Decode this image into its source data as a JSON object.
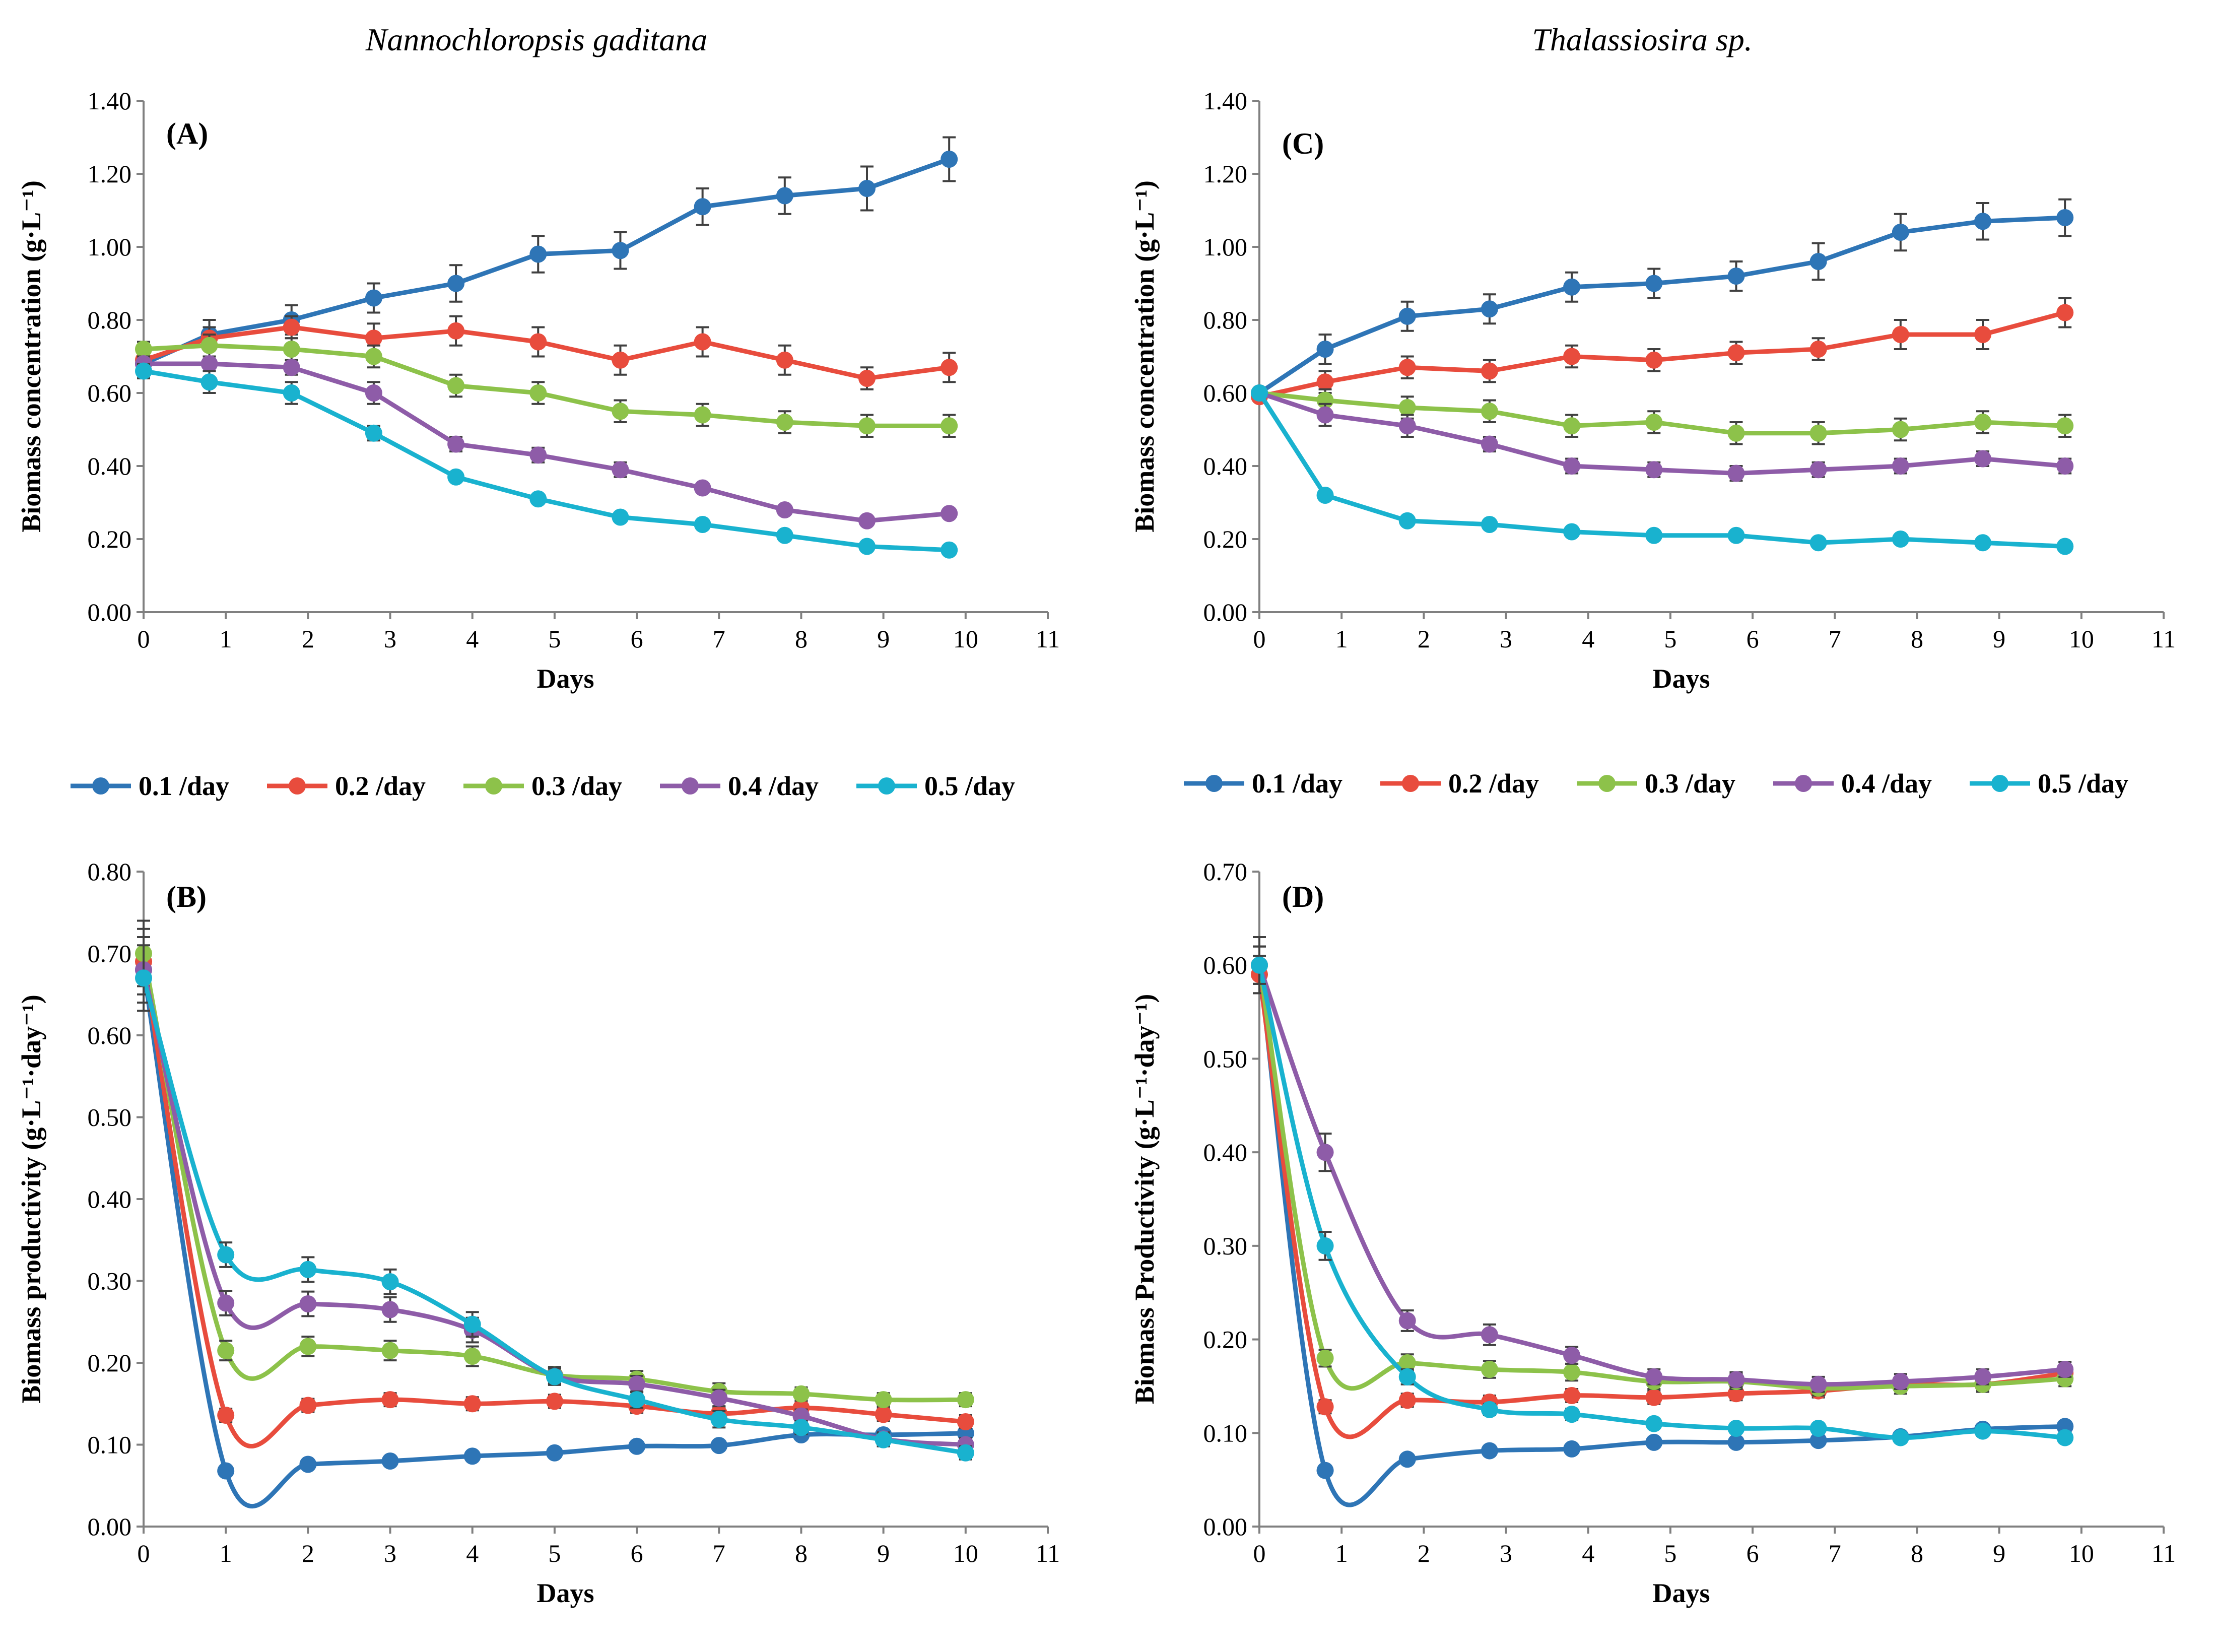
{
  "colors": {
    "s1": "#2e75b6",
    "s2": "#e84c3d",
    "s3": "#8dc24a",
    "s4": "#8e5ca8",
    "s5": "#19b2cf"
  },
  "column_titles": [
    "Nannochloropsis gaditana",
    "Thalassiosira sp."
  ],
  "legends": [
    [
      "0.1 /day",
      "0.2 /day",
      "0.3 /day",
      "0.4 /day",
      "0.5 /day"
    ],
    [
      "0.1 /day",
      "0.2 /day",
      "0.3 /day",
      "0.4 /day",
      "0.5 /day"
    ]
  ],
  "chart_data": [
    {
      "id": "A",
      "type": "line",
      "label": "(A)",
      "xlabel": "Days",
      "ylabel": "Biomass concentration (g·L⁻¹)",
      "xlim": [
        0,
        11
      ],
      "ylim": [
        0,
        1.4
      ],
      "xticks": [
        0,
        1,
        2,
        3,
        4,
        5,
        6,
        7,
        8,
        9,
        10,
        11
      ],
      "xtick_labels": [
        "0",
        "1",
        "2",
        "3",
        "4",
        "5",
        "6",
        "7",
        "8",
        "9",
        "10",
        "11"
      ],
      "yticks": [
        0,
        0.2,
        0.4,
        0.6,
        0.8,
        1.0,
        1.2,
        1.4
      ],
      "ytick_labels": [
        "0.00",
        "0.20",
        "0.40",
        "0.60",
        "0.80",
        "1.00",
        "1.20",
        "1.40"
      ],
      "smooth": false,
      "series": [
        {
          "name": "0.1 /day",
          "x": [
            0,
            0.8,
            1.8,
            2.8,
            3.8,
            4.8,
            5.8,
            6.8,
            7.8,
            8.8,
            9.8
          ],
          "y": [
            0.68,
            0.76,
            0.8,
            0.86,
            0.9,
            0.98,
            0.99,
            1.11,
            1.14,
            1.16,
            1.24
          ],
          "err": [
            0.02,
            0.04,
            0.04,
            0.04,
            0.05,
            0.05,
            0.05,
            0.05,
            0.05,
            0.06,
            0.06
          ]
        },
        {
          "name": "0.2 /day",
          "x": [
            0,
            0.8,
            1.8,
            2.8,
            3.8,
            4.8,
            5.8,
            6.8,
            7.8,
            8.8,
            9.8
          ],
          "y": [
            0.69,
            0.75,
            0.78,
            0.75,
            0.77,
            0.74,
            0.69,
            0.74,
            0.69,
            0.64,
            0.67
          ],
          "err": [
            0.02,
            0.03,
            0.03,
            0.04,
            0.04,
            0.04,
            0.04,
            0.04,
            0.04,
            0.03,
            0.04
          ]
        },
        {
          "name": "0.3 /day",
          "x": [
            0,
            0.8,
            1.8,
            2.8,
            3.8,
            4.8,
            5.8,
            6.8,
            7.8,
            8.8,
            9.8
          ],
          "y": [
            0.72,
            0.73,
            0.72,
            0.7,
            0.62,
            0.6,
            0.55,
            0.54,
            0.52,
            0.51,
            0.51
          ],
          "err": [
            0.02,
            0.03,
            0.03,
            0.03,
            0.03,
            0.03,
            0.03,
            0.03,
            0.03,
            0.03,
            0.03
          ]
        },
        {
          "name": "0.4 /day",
          "x": [
            0,
            0.8,
            1.8,
            2.8,
            3.8,
            4.8,
            5.8,
            6.8,
            7.8,
            8.8,
            9.8
          ],
          "y": [
            0.68,
            0.68,
            0.67,
            0.6,
            0.46,
            0.43,
            0.39,
            0.34,
            0.28,
            0.25,
            0.27
          ],
          "err": [
            0.02,
            0.02,
            0.02,
            0.03,
            0.02,
            0.02,
            0.02,
            0.01,
            0.01,
            0.01,
            0.01
          ]
        },
        {
          "name": "0.5 /day",
          "x": [
            0,
            0.8,
            1.8,
            2.8,
            3.8,
            4.8,
            5.8,
            6.8,
            7.8,
            8.8,
            9.8
          ],
          "y": [
            0.66,
            0.63,
            0.6,
            0.49,
            0.37,
            0.31,
            0.26,
            0.24,
            0.21,
            0.18,
            0.17
          ],
          "err": [
            0.02,
            0.03,
            0.03,
            0.02,
            0.01,
            0.01,
            0.01,
            0.01,
            0.01,
            0.01,
            0.01
          ]
        }
      ]
    },
    {
      "id": "B",
      "type": "line",
      "label": "(B)",
      "xlabel": "Days",
      "ylabel": "Biomass productivity (g·L⁻¹·day⁻¹)",
      "xlim": [
        0,
        11
      ],
      "ylim": [
        0,
        0.8
      ],
      "xticks": [
        0,
        1,
        2,
        3,
        4,
        5,
        6,
        7,
        8,
        9,
        10,
        11
      ],
      "xtick_labels": [
        "0",
        "1",
        "2",
        "3",
        "4",
        "5",
        "6",
        "7",
        "8",
        "9",
        "10",
        "11"
      ],
      "yticks": [
        0,
        0.1,
        0.2,
        0.3,
        0.4,
        0.5,
        0.6,
        0.7,
        0.8
      ],
      "ytick_labels": [
        "0.00",
        "0.10",
        "0.20",
        "0.30",
        "0.40",
        "0.50",
        "0.60",
        "0.70",
        "0.80"
      ],
      "smooth": true,
      "series": [
        {
          "name": "0.1 /day",
          "x": [
            0,
            1,
            2,
            3,
            4,
            5,
            6,
            7,
            8,
            9,
            10
          ],
          "y": [
            0.68,
            0.068,
            0.076,
            0.08,
            0.086,
            0.09,
            0.098,
            0.099,
            0.112,
            0.112,
            0.114
          ],
          "err": [
            0.04,
            0,
            0,
            0,
            0,
            0,
            0,
            0,
            0,
            0,
            0
          ]
        },
        {
          "name": "0.2 /day",
          "x": [
            0,
            1,
            2,
            3,
            4,
            5,
            6,
            7,
            8,
            9,
            10
          ],
          "y": [
            0.69,
            0.136,
            0.148,
            0.155,
            0.15,
            0.153,
            0.147,
            0.138,
            0.145,
            0.137,
            0.128
          ],
          "err": [
            0.04,
            0.008,
            0.008,
            0.008,
            0.008,
            0.008,
            0.008,
            0.008,
            0.008,
            0.008,
            0.008
          ]
        },
        {
          "name": "0.3 /day",
          "x": [
            0,
            1,
            2,
            3,
            4,
            5,
            6,
            7,
            8,
            9,
            10
          ],
          "y": [
            0.7,
            0.215,
            0.22,
            0.215,
            0.208,
            0.185,
            0.18,
            0.165,
            0.162,
            0.155,
            0.155
          ],
          "err": [
            0.04,
            0.012,
            0.012,
            0.012,
            0.012,
            0.01,
            0.01,
            0.01,
            0.008,
            0.008,
            0.008
          ]
        },
        {
          "name": "0.4 /day",
          "x": [
            0,
            1,
            2,
            3,
            4,
            5,
            6,
            7,
            8,
            9,
            10
          ],
          "y": [
            0.68,
            0.273,
            0.272,
            0.265,
            0.24,
            0.184,
            0.174,
            0.157,
            0.135,
            0.107,
            0.1
          ],
          "err": [
            0.04,
            0.015,
            0.015,
            0.015,
            0.015,
            0.01,
            0.01,
            0.01,
            0.008,
            0.008,
            0.008
          ]
        },
        {
          "name": "0.5 /day",
          "x": [
            0,
            1,
            2,
            3,
            4,
            5,
            6,
            7,
            8,
            9,
            10
          ],
          "y": [
            0.67,
            0.332,
            0.314,
            0.299,
            0.247,
            0.183,
            0.155,
            0.131,
            0.121,
            0.106,
            0.09
          ],
          "err": [
            0.04,
            0.015,
            0.015,
            0.015,
            0.015,
            0.01,
            0.01,
            0.01,
            0.008,
            0.008,
            0.008
          ]
        }
      ]
    },
    {
      "id": "C",
      "type": "line",
      "label": "(C)",
      "xlabel": "Days",
      "ylabel": "Biomass concentration (g·L⁻¹)",
      "xlim": [
        0,
        11
      ],
      "ylim": [
        0,
        1.4
      ],
      "xticks": [
        0,
        1,
        2,
        3,
        4,
        5,
        6,
        7,
        8,
        9,
        10,
        11
      ],
      "xtick_labels": [
        "0",
        "1",
        "2",
        "3",
        "4",
        "5",
        "6",
        "7",
        "8",
        "9",
        "10",
        "11"
      ],
      "yticks": [
        0,
        0.2,
        0.4,
        0.6,
        0.8,
        1.0,
        1.2,
        1.4
      ],
      "ytick_labels": [
        "0.00",
        "0.20",
        "0.40",
        "0.60",
        "0.80",
        "1.00",
        "1.20",
        "1.40"
      ],
      "smooth": false,
      "series": [
        {
          "name": "0.1 /day",
          "x": [
            0,
            0.8,
            1.8,
            2.8,
            3.8,
            4.8,
            5.8,
            6.8,
            7.8,
            8.8,
            9.8
          ],
          "y": [
            0.6,
            0.72,
            0.81,
            0.83,
            0.89,
            0.9,
            0.92,
            0.96,
            1.04,
            1.07,
            1.08
          ],
          "err": [
            0.01,
            0.04,
            0.04,
            0.04,
            0.04,
            0.04,
            0.04,
            0.05,
            0.05,
            0.05,
            0.05
          ]
        },
        {
          "name": "0.2 /day",
          "x": [
            0,
            0.8,
            1.8,
            2.8,
            3.8,
            4.8,
            5.8,
            6.8,
            7.8,
            8.8,
            9.8
          ],
          "y": [
            0.59,
            0.63,
            0.67,
            0.66,
            0.7,
            0.69,
            0.71,
            0.72,
            0.76,
            0.76,
            0.82
          ],
          "err": [
            0.01,
            0.03,
            0.03,
            0.03,
            0.03,
            0.03,
            0.03,
            0.03,
            0.04,
            0.04,
            0.04
          ]
        },
        {
          "name": "0.3 /day",
          "x": [
            0,
            0.8,
            1.8,
            2.8,
            3.8,
            4.8,
            5.8,
            6.8,
            7.8,
            8.8,
            9.8
          ],
          "y": [
            0.6,
            0.58,
            0.56,
            0.55,
            0.51,
            0.52,
            0.49,
            0.49,
            0.5,
            0.52,
            0.51
          ],
          "err": [
            0.01,
            0.03,
            0.03,
            0.03,
            0.03,
            0.03,
            0.03,
            0.03,
            0.03,
            0.03,
            0.03
          ]
        },
        {
          "name": "0.4 /day",
          "x": [
            0,
            0.8,
            1.8,
            2.8,
            3.8,
            4.8,
            5.8,
            6.8,
            7.8,
            8.8,
            9.8
          ],
          "y": [
            0.6,
            0.54,
            0.51,
            0.46,
            0.4,
            0.39,
            0.38,
            0.39,
            0.4,
            0.42,
            0.4
          ],
          "err": [
            0.01,
            0.03,
            0.03,
            0.02,
            0.02,
            0.02,
            0.02,
            0.02,
            0.02,
            0.02,
            0.02
          ]
        },
        {
          "name": "0.5 /day",
          "x": [
            0,
            0.8,
            1.8,
            2.8,
            3.8,
            4.8,
            5.8,
            6.8,
            7.8,
            8.8,
            9.8
          ],
          "y": [
            0.6,
            0.32,
            0.25,
            0.24,
            0.22,
            0.21,
            0.21,
            0.19,
            0.2,
            0.19,
            0.18
          ],
          "err": [
            0.01,
            0.01,
            0.01,
            0.01,
            0.01,
            0.01,
            0.01,
            0.01,
            0.01,
            0.01,
            0.01
          ]
        }
      ]
    },
    {
      "id": "D",
      "type": "line",
      "label": "(D)",
      "xlabel": "Days",
      "ylabel": "Biomass Productivity (g·L⁻¹·day⁻¹)",
      "xlim": [
        0,
        11
      ],
      "ylim": [
        0,
        0.7
      ],
      "xticks": [
        0,
        1,
        2,
        3,
        4,
        5,
        6,
        7,
        8,
        9,
        10,
        11
      ],
      "xtick_labels": [
        "0",
        "1",
        "2",
        "3",
        "4",
        "5",
        "6",
        "7",
        "8",
        "9",
        "10",
        "11"
      ],
      "yticks": [
        0,
        0.1,
        0.2,
        0.3,
        0.4,
        0.5,
        0.6,
        0.7
      ],
      "ytick_labels": [
        "0.00",
        "0.10",
        "0.20",
        "0.30",
        "0.40",
        "0.50",
        "0.60",
        "0.70"
      ],
      "smooth": true,
      "series": [
        {
          "name": "0.1 /day",
          "x": [
            0,
            0.8,
            1.8,
            2.8,
            3.8,
            4.8,
            5.8,
            6.8,
            7.8,
            8.8,
            9.8
          ],
          "y": [
            0.6,
            0.06,
            0.072,
            0.081,
            0.083,
            0.09,
            0.09,
            0.092,
            0.096,
            0.104,
            0.107
          ],
          "err": [
            0.03,
            0,
            0,
            0,
            0,
            0,
            0,
            0,
            0,
            0,
            0
          ]
        },
        {
          "name": "0.2 /day",
          "x": [
            0,
            0.8,
            1.8,
            2.8,
            3.8,
            4.8,
            5.8,
            6.8,
            7.8,
            8.8,
            9.8
          ],
          "y": [
            0.59,
            0.128,
            0.135,
            0.133,
            0.14,
            0.138,
            0.142,
            0.145,
            0.152,
            0.152,
            0.164
          ],
          "err": [
            0.02,
            0.007,
            0.007,
            0.007,
            0.007,
            0.007,
            0.007,
            0.007,
            0.007,
            0.007,
            0.007
          ]
        },
        {
          "name": "0.3 /day",
          "x": [
            0,
            0.8,
            1.8,
            2.8,
            3.8,
            4.8,
            5.8,
            6.8,
            7.8,
            8.8,
            9.8
          ],
          "y": [
            0.6,
            0.18,
            0.175,
            0.168,
            0.165,
            0.155,
            0.155,
            0.148,
            0.15,
            0.152,
            0.158
          ],
          "err": [
            0.02,
            0.009,
            0.009,
            0.009,
            0.009,
            0.008,
            0.008,
            0.008,
            0.008,
            0.008,
            0.008
          ]
        },
        {
          "name": "0.4 /day",
          "x": [
            0,
            0.8,
            1.8,
            2.8,
            3.8,
            4.8,
            5.8,
            6.8,
            7.8,
            8.8,
            9.8
          ],
          "y": [
            0.6,
            0.4,
            0.22,
            0.205,
            0.183,
            0.16,
            0.157,
            0.152,
            0.155,
            0.16,
            0.168
          ],
          "err": [
            0.02,
            0.02,
            0.011,
            0.011,
            0.009,
            0.008,
            0.008,
            0.008,
            0.008,
            0.008,
            0.008
          ]
        },
        {
          "name": "0.5 /day",
          "x": [
            0,
            0.8,
            1.8,
            2.8,
            3.8,
            4.8,
            5.8,
            6.8,
            7.8,
            8.8,
            9.8
          ],
          "y": [
            0.6,
            0.3,
            0.16,
            0.125,
            0.12,
            0.11,
            0.105,
            0.105,
            0.095,
            0.102,
            0.095
          ],
          "err": [
            0.02,
            0.015,
            0.008,
            0.006,
            0.006,
            0.005,
            0.005,
            0.005,
            0.005,
            0.005,
            0.005
          ]
        }
      ]
    }
  ]
}
